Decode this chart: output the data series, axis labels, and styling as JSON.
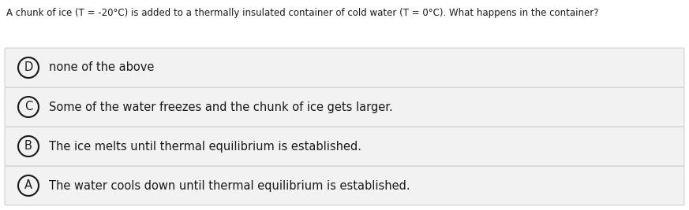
{
  "question": "A chunk of ice (T = -20°C) is added to a thermally insulated container of cold water (T = 0°C). What happens in the container?",
  "options": [
    {
      "label": "A",
      "text": "The water cools down until thermal equilibrium is established."
    },
    {
      "label": "B",
      "text": "The ice melts until thermal equilibrium is established."
    },
    {
      "label": "C",
      "text": "Some of the water freezes and the chunk of ice gets larger."
    },
    {
      "label": "D",
      "text": "none of the above"
    }
  ],
  "background_color": "#ffffff",
  "option_box_color": "#f2f2f2",
  "option_box_edge_color": "#cccccc",
  "question_font_size": 8.5,
  "option_font_size": 10.5,
  "label_font_size": 10.5,
  "text_color": "#1a1a1a",
  "question_color": "#1a1a1a",
  "fig_width": 8.73,
  "fig_height": 2.67,
  "dpi": 100
}
